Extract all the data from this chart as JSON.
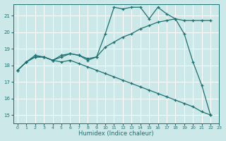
{
  "xlabel": "Humidex (Indice chaleur)",
  "bg_color": "#cce8e8",
  "grid_color": "#ffffff",
  "line_color": "#1a7070",
  "xlim": [
    -0.5,
    23
  ],
  "ylim": [
    14.5,
    21.7
  ],
  "yticks": [
    15,
    16,
    17,
    18,
    19,
    20,
    21
  ],
  "xticks": [
    0,
    1,
    2,
    3,
    4,
    5,
    6,
    7,
    8,
    9,
    10,
    11,
    12,
    13,
    14,
    15,
    16,
    17,
    18,
    19,
    20,
    21,
    22,
    23
  ],
  "x_values": [
    0,
    1,
    2,
    3,
    4,
    5,
    6,
    7,
    8,
    9,
    10,
    11,
    12,
    13,
    14,
    15,
    16,
    17,
    18,
    19,
    20,
    21,
    22
  ],
  "series": [
    [
      17.7,
      18.2,
      18.6,
      18.5,
      18.3,
      18.6,
      18.7,
      18.6,
      18.3,
      18.5,
      19.9,
      21.5,
      21.4,
      21.5,
      21.5,
      20.8,
      21.5,
      21.1,
      20.8,
      19.9,
      18.2,
      16.8,
      15.0
    ],
    [
      17.7,
      18.2,
      18.5,
      18.5,
      18.3,
      18.5,
      18.7,
      18.6,
      18.4,
      18.5,
      19.1,
      19.4,
      19.7,
      19.9,
      20.2,
      20.4,
      20.6,
      20.7,
      20.8,
      20.7,
      20.7,
      20.7,
      20.7
    ],
    [
      17.7,
      18.2,
      18.5,
      18.5,
      18.3,
      18.2,
      18.3,
      18.1,
      17.9,
      17.7,
      17.5,
      17.3,
      17.1,
      16.9,
      16.7,
      16.5,
      16.3,
      16.1,
      15.9,
      15.7,
      15.5,
      15.2,
      15.0
    ]
  ]
}
